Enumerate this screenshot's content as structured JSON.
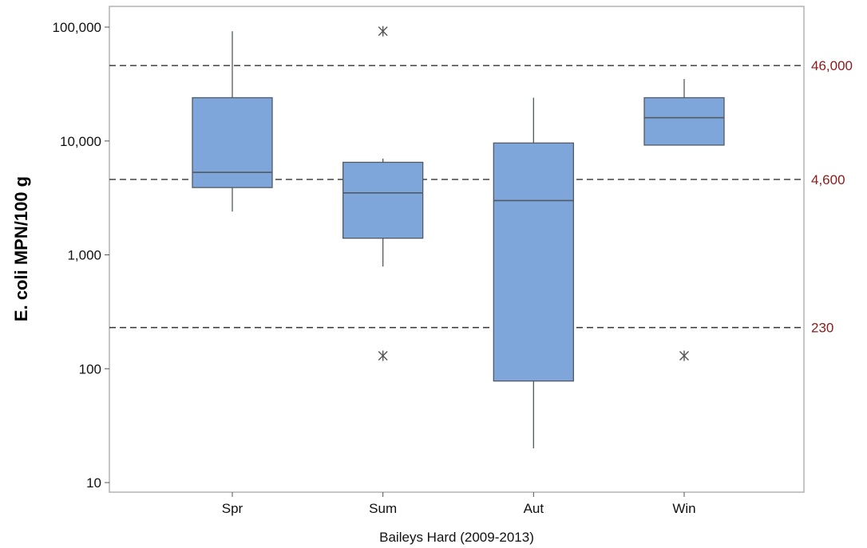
{
  "chart_data": {
    "type": "box",
    "xlabel": "Baileys Hard (2009-2013)",
    "ylabel": "E. coli MPN/100 g",
    "yscale": "log",
    "ylim": [
      8,
      150000
    ],
    "yticks": [
      10,
      100,
      1000,
      10000,
      100000
    ],
    "ytick_labels": [
      "10",
      "100",
      "1,000",
      "10,000",
      "100,000"
    ],
    "categories": [
      "Spr",
      "Sum",
      "Aut",
      "Win"
    ],
    "box_color": "#7ea6da",
    "box_edge_color": "#505a64",
    "grid": false,
    "boxes": [
      {
        "category": "Spr",
        "whisker_low": 2400,
        "q1": 3900,
        "median": 5300,
        "q3": 24000,
        "whisker_high": 92000,
        "outliers": []
      },
      {
        "category": "Sum",
        "whisker_low": 790,
        "q1": 1400,
        "median": 3500,
        "q3": 6500,
        "whisker_high": 7000,
        "outliers": [
          92000,
          130
        ]
      },
      {
        "category": "Aut",
        "whisker_low": 20,
        "q1": 78,
        "median": 3000,
        "q3": 9600,
        "whisker_high": 24000,
        "outliers": []
      },
      {
        "category": "Win",
        "whisker_low": 9200,
        "q1": 9200,
        "median": 16000,
        "q3": 24000,
        "whisker_high": 35000,
        "outliers": [
          130
        ]
      }
    ],
    "reference_lines": [
      {
        "value": 46000,
        "label": "46,000"
      },
      {
        "value": 4600,
        "label": "4,600"
      },
      {
        "value": 230,
        "label": "230"
      }
    ],
    "reference_label_color": "#8b1a1a"
  }
}
